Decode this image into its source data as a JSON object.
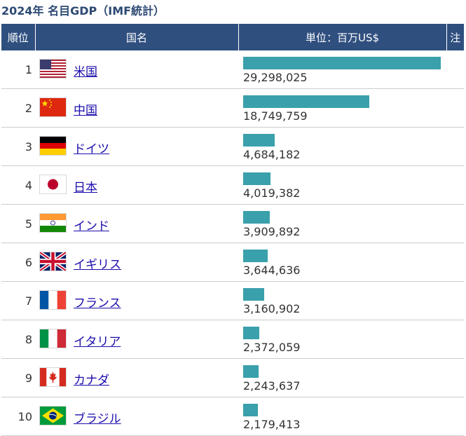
{
  "title": "2024年 名目GDP（IMF統計）",
  "columns": {
    "rank": "順位",
    "country": "国名",
    "value": "単位：百万US$",
    "note": "注"
  },
  "colors": {
    "header_bg": "#2f4f7f",
    "bar": "#3aa0ab",
    "link": "#1a0dab",
    "title": "#2e4a73"
  },
  "rows": [
    {
      "rank": "1",
      "country": "米国",
      "flag_icon": "usa-flag-icon",
      "value": "29,298,025"
    },
    {
      "rank": "2",
      "country": "中国",
      "flag_icon": "china-flag-icon",
      "value": "18,749,759"
    },
    {
      "rank": "3",
      "country": "ドイツ",
      "flag_icon": "germany-flag-icon",
      "value": "4,684,182"
    },
    {
      "rank": "4",
      "country": "日本",
      "flag_icon": "japan-flag-icon",
      "value": "4,019,382"
    },
    {
      "rank": "5",
      "country": "インド",
      "flag_icon": "india-flag-icon",
      "value": "3,909,892"
    },
    {
      "rank": "6",
      "country": "イギリス",
      "flag_icon": "uk-flag-icon",
      "value": "3,644,636"
    },
    {
      "rank": "7",
      "country": "フランス",
      "flag_icon": "france-flag-icon",
      "value": "3,160,902"
    },
    {
      "rank": "8",
      "country": "イタリア",
      "flag_icon": "italy-flag-icon",
      "value": "2,372,059"
    },
    {
      "rank": "9",
      "country": "カナダ",
      "flag_icon": "canada-flag-icon",
      "value": "2,243,637"
    },
    {
      "rank": "10",
      "country": "ブラジル",
      "flag_icon": "brazil-flag-icon",
      "value": "2,179,413"
    }
  ],
  "chart_data": {
    "type": "bar",
    "title": "2024年 名目GDP（IMF統計）",
    "unit": "単位：百万US$",
    "categories": [
      "米国",
      "中国",
      "ドイツ",
      "日本",
      "インド",
      "イギリス",
      "フランス",
      "イタリア",
      "カナダ",
      "ブラジル"
    ],
    "values": [
      29298025,
      18749759,
      4684182,
      4019382,
      3909892,
      3644636,
      3160902,
      2372059,
      2243637,
      2179413
    ]
  }
}
